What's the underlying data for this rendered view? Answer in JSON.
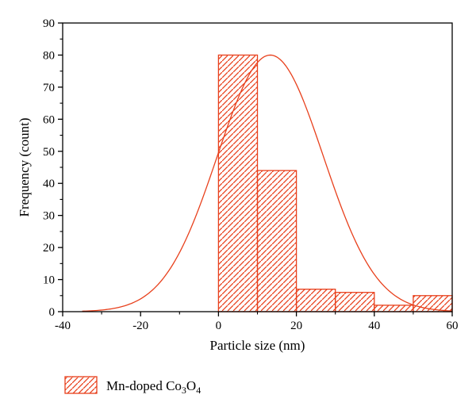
{
  "chart_data": {
    "type": "bar",
    "xlabel": "Particle size (nm)",
    "ylabel": "Frequency (count)",
    "xlim": [
      -40,
      60
    ],
    "ylim": [
      0,
      90
    ],
    "xticks": [
      -40,
      -20,
      0,
      20,
      40,
      60
    ],
    "yticks": [
      0,
      10,
      20,
      30,
      40,
      50,
      60,
      70,
      80,
      90
    ],
    "bins": [
      {
        "x0": 0,
        "x1": 10,
        "value": 80
      },
      {
        "x0": 10,
        "x1": 20,
        "value": 44
      },
      {
        "x0": 20,
        "x1": 30,
        "value": 7
      },
      {
        "x0": 30,
        "x1": 40,
        "value": 6
      },
      {
        "x0": 40,
        "x1": 50,
        "value": 2
      },
      {
        "x0": 50,
        "x1": 60,
        "value": 5
      }
    ],
    "fit_curve": {
      "type": "gaussian",
      "mean": 13.3,
      "sigma": 13.6,
      "peak": 80,
      "x_start": -35,
      "x_end": 60
    },
    "legend": {
      "label": "Mn-doped ",
      "formula": [
        "Co",
        "3",
        "O",
        "4"
      ],
      "placement": "bottom-left"
    },
    "colors": {
      "bar": "#e8401c",
      "curve": "#e8401c",
      "axis": "#000000"
    },
    "grid": false
  }
}
